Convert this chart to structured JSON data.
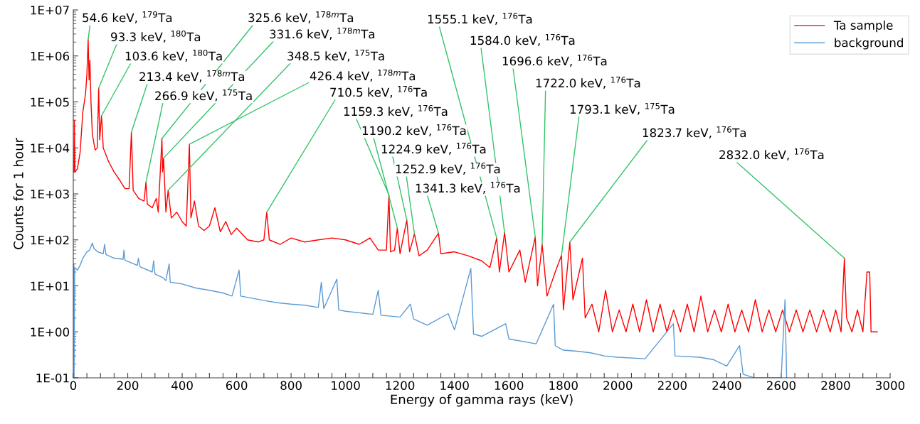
{
  "chart_data": {
    "type": "line",
    "xlabel": "Energy of gamma rays (keV)",
    "ylabel": "Counts for 1 hour",
    "log": "y",
    "grid": false,
    "legend": "top right",
    "marker": "none",
    "line_style": "solid",
    "xlim": [
      0,
      3000
    ],
    "xticks": [
      0,
      {
        "value": 50,
        "label": null
      },
      {
        "value": 100,
        "label": null
      },
      {
        "value": 150,
        "label": null
      },
      200,
      {
        "value": 250,
        "label": null
      },
      {
        "value": 300,
        "label": null
      },
      {
        "value": 350,
        "label": null
      },
      400,
      {
        "value": 450,
        "label": null
      },
      {
        "value": 500,
        "label": null
      },
      {
        "value": 550,
        "label": null
      },
      600,
      {
        "value": 650,
        "label": null
      },
      {
        "value": 700,
        "label": null
      },
      {
        "value": 750,
        "label": null
      },
      800,
      {
        "value": 850,
        "label": null
      },
      {
        "value": 900,
        "label": null
      },
      {
        "value": 950,
        "label": null
      },
      1000,
      {
        "value": 1050,
        "label": null
      },
      {
        "value": 1100,
        "label": null
      },
      {
        "value": 1150,
        "label": null
      },
      1200,
      {
        "value": 1250,
        "label": null
      },
      {
        "value": 1300,
        "label": null
      },
      {
        "value": 1350,
        "label": null
      },
      1400,
      {
        "value": 1450,
        "label": null
      },
      {
        "value": 1500,
        "label": null
      },
      {
        "value": 1550,
        "label": null
      },
      1600,
      {
        "value": 1650,
        "label": null
      },
      {
        "value": 1700,
        "label": null
      },
      {
        "value": 1750,
        "label": null
      },
      1800,
      {
        "value": 1850,
        "label": null
      },
      {
        "value": 1900,
        "label": null
      },
      {
        "value": 1950,
        "label": null
      },
      2000,
      {
        "value": 2050,
        "label": null
      },
      {
        "value": 2100,
        "label": null
      },
      {
        "value": 2150,
        "label": null
      },
      2200,
      {
        "value": 2250,
        "label": null
      },
      {
        "value": 2300,
        "label": null
      },
      {
        "value": 2350,
        "label": null
      },
      2400,
      {
        "value": 2450,
        "label": null
      },
      {
        "value": 2500,
        "label": null
      },
      {
        "value": 2550,
        "label": null
      },
      2600,
      {
        "value": 2650,
        "label": null
      },
      {
        "value": 2700,
        "label": null
      },
      {
        "value": 2750,
        "label": null
      },
      2800,
      {
        "value": 2850,
        "label": null
      },
      {
        "value": 2900,
        "label": null
      },
      {
        "value": 2950,
        "label": null
      },
      3000
    ],
    "ylim": [
      0.1,
      10000000
    ],
    "yticks": [
      {
        "value": 0.1,
        "label": "1E-01"
      },
      {
        "value": 1,
        "label": "1E+00"
      },
      {
        "value": 10,
        "label": "1E+01"
      },
      {
        "value": 100,
        "label": "1E+02"
      },
      {
        "value": 1000,
        "label": "1E+03"
      },
      {
        "value": 10000,
        "label": "1E+04"
      },
      {
        "value": 100000,
        "label": "1E+05"
      },
      {
        "value": 1000000,
        "label": "1E+06"
      },
      {
        "value": 10000000,
        "label": "1E+07"
      }
    ],
    "series": [
      {
        "name": "Ta sample",
        "color": "#ff0000",
        "x": [
          2,
          4,
          6,
          15,
          25,
          35,
          45,
          50,
          54.6,
          58,
          61,
          65,
          70,
          80,
          88,
          93.3,
          97,
          103.6,
          106,
          110,
          130,
          150,
          170,
          190,
          205,
          213.4,
          220,
          240,
          260,
          266.9,
          272,
          290,
          305,
          312,
          325.6,
          328,
          331.6,
          340,
          348.5,
          360,
          380,
          400,
          415,
          426.4,
          432,
          445,
          460,
          480,
          500,
          520,
          540,
          560,
          580,
          600,
          640,
          680,
          700,
          710.5,
          720,
          760,
          800,
          850,
          900,
          950,
          1000,
          1050,
          1090,
          1120,
          1150,
          1159.3,
          1165,
          1180,
          1190.2,
          1200,
          1224.9,
          1235,
          1252.9,
          1270,
          1300,
          1341.3,
          1350,
          1400,
          1450,
          1500,
          1530,
          1555.1,
          1565,
          1584.0,
          1600,
          1640,
          1660,
          1696.6,
          1705,
          1722.0,
          1740,
          1770,
          1793.1,
          1800,
          1823.7,
          1835,
          1870,
          1880,
          1905,
          1930,
          1955,
          1980,
          2005,
          2030,
          2055,
          2080,
          2105,
          2130,
          2155,
          2180,
          2205,
          2230,
          2255,
          2280,
          2305,
          2330,
          2355,
          2380,
          2405,
          2430,
          2455,
          2480,
          2505,
          2530,
          2555,
          2580,
          2605,
          2630,
          2655,
          2680,
          2705,
          2730,
          2755,
          2780,
          2800,
          2820,
          2832.0,
          2840,
          2860,
          2880,
          2900,
          2915,
          2925,
          2930,
          2953
        ],
        "values": [
          3000,
          40000,
          3000,
          3500,
          8000,
          60000,
          150000,
          400000,
          2300000,
          300000,
          800000,
          100000,
          20000,
          9000,
          10000,
          200000,
          15000,
          50000,
          30000,
          10000,
          5000,
          3000,
          2000,
          1300,
          1300,
          22000,
          1200,
          800,
          700,
          1800,
          600,
          500,
          800,
          400,
          16000,
          3000,
          6000,
          400,
          1200,
          300,
          400,
          250,
          200,
          12000,
          300,
          700,
          200,
          160,
          200,
          500,
          150,
          250,
          130,
          180,
          100,
          90,
          100,
          400,
          100,
          80,
          110,
          90,
          100,
          110,
          100,
          80,
          110,
          60,
          60,
          950,
          55,
          60,
          180,
          50,
          270,
          55,
          135,
          45,
          60,
          140,
          50,
          55,
          45,
          35,
          25,
          110,
          20,
          145,
          20,
          60,
          12,
          115,
          10,
          80,
          6,
          20,
          46,
          3,
          90,
          5,
          40,
          2,
          4,
          1,
          8,
          1,
          3,
          1,
          4,
          1,
          5,
          1,
          4,
          1,
          3,
          1,
          4,
          1,
          6,
          1,
          3,
          1,
          4,
          1,
          3,
          1,
          5,
          1,
          3,
          1,
          3,
          1,
          3,
          1,
          3,
          1,
          3,
          1,
          3,
          1,
          40,
          2,
          1,
          3,
          1,
          20,
          20,
          1,
          1
        ]
      },
      {
        "name": "background",
        "color": "#5b9bd5",
        "x": [
          2,
          3,
          5,
          15,
          25,
          35,
          50,
          60,
          70,
          76,
          90,
          110,
          115,
          120,
          150,
          183,
          186,
          190,
          235,
          239,
          245,
          290,
          295,
          300,
          330,
          340,
          352,
          356,
          400,
          450,
          500,
          550,
          583,
          609,
          615,
          650,
          700,
          750,
          800,
          850,
          900,
          911,
          920,
          968,
          975,
          1000,
          1050,
          1100,
          1120,
          1130,
          1200,
          1238,
          1250,
          1300,
          1377,
          1400,
          1460,
          1470,
          1500,
          1588,
          1600,
          1700,
          1764,
          1770,
          1800,
          1850,
          1900,
          1950,
          2000,
          2100,
          2204,
          2210,
          2300,
          2350,
          2400,
          2447,
          2460,
          2500,
          2600,
          2614,
          2620
        ],
        "values": [
          30,
          0.1,
          25,
          22,
          28,
          40,
          55,
          60,
          85,
          65,
          55,
          50,
          80,
          48,
          40,
          38,
          60,
          36,
          28,
          40,
          26,
          20,
          35,
          18,
          15,
          13,
          30,
          12,
          11,
          9,
          8,
          7,
          6,
          22,
          6,
          5.5,
          4.8,
          4.3,
          4,
          3.8,
          3.4,
          12,
          3.2,
          14,
          3,
          2.8,
          2.6,
          2.4,
          8,
          2.3,
          2.1,
          4,
          1.9,
          1.4,
          2.5,
          1.1,
          24,
          0.9,
          0.8,
          1.5,
          0.7,
          0.55,
          4,
          0.5,
          0.4,
          0.38,
          0.35,
          0.3,
          0.28,
          0.26,
          1.5,
          0.3,
          0.28,
          0.25,
          0.18,
          0.5,
          0.12,
          0.1,
          0.1,
          5,
          0.1
        ]
      }
    ],
    "annotations": [
      {
        "text": "54.6 keV, $^{179}$Ta",
        "x": 54.6,
        "y": 2300000
      },
      {
        "text": "93.3 keV, $^{180}$Ta",
        "x": 93.3,
        "y": 200000
      },
      {
        "text": "103.6 keV, $^{180}$Ta",
        "x": 103.6,
        "y": 50000
      },
      {
        "text": "213.4 keV, $^{178m}$Ta",
        "x": 213.4,
        "y": 22000
      },
      {
        "text": "266.9 keV, $^{175}$Ta",
        "x": 266.9,
        "y": 1800
      },
      {
        "text": "325.6 keV, $^{178m}$Ta",
        "x": 325.6,
        "y": 16000
      },
      {
        "text": "331.6 keV, $^{178m}$Ta",
        "x": 331.6,
        "y": 6000
      },
      {
        "text": "348.5 keV, $^{175}$Ta",
        "x": 348.5,
        "y": 1200
      },
      {
        "text": "426.4 keV, $^{178m}$Ta",
        "x": 426.4,
        "y": 12000
      },
      {
        "text": "710.5 keV, $^{176}$Ta",
        "x": 710.5,
        "y": 400
      },
      {
        "text": "1159.3 keV, $^{176}$Ta",
        "x": 1159.3,
        "y": 950
      },
      {
        "text": "1190.2 keV, $^{176}$Ta",
        "x": 1190.2,
        "y": 180
      },
      {
        "text": "1224.9 keV, $^{176}$Ta",
        "x": 1224.9,
        "y": 270
      },
      {
        "text": "1252.9 keV, $^{176}$Ta",
        "x": 1252.9,
        "y": 135
      },
      {
        "text": "1341.3 keV, $^{176}$Ta",
        "x": 1341.3,
        "y": 140
      },
      {
        "text": "1555.1 keV, $^{176}$Ta",
        "x": 1555.1,
        "y": 110
      },
      {
        "text": "1584.0 keV, $^{176}$Ta",
        "x": 1584.0,
        "y": 145
      },
      {
        "text": "1696.6 keV, $^{176}$Ta",
        "x": 1696.6,
        "y": 115
      },
      {
        "text": "1722.0 keV, $^{176}$Ta",
        "x": 1722.0,
        "y": 80
      },
      {
        "text": "1793.1 keV, $^{175}$Ta",
        "x": 1793.1,
        "y": 46
      },
      {
        "text": "1823.7 keV, $^{176}$Ta",
        "x": 1823.7,
        "y": 90
      },
      {
        "text": "2832.0 keV, $^{176}$Ta",
        "x": 2832.0,
        "y": 40
      }
    ]
  }
}
